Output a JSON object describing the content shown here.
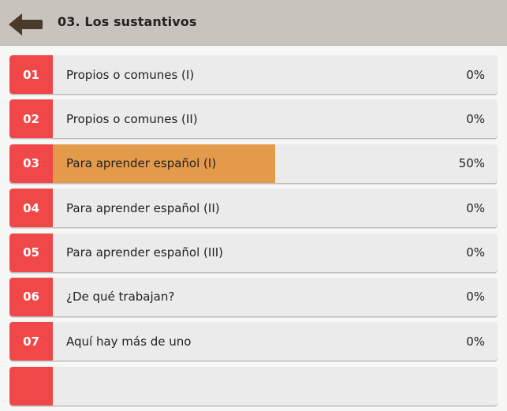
{
  "header": {
    "title": "03. Los sustantivos",
    "back_icon": "back-arrow-icon",
    "background": "#c8c3bd"
  },
  "colors": {
    "number_badge": "#f04848",
    "progress_fill": "#e39a4a",
    "row_background": "#ebebeb"
  },
  "lessons": [
    {
      "number": "01",
      "title": "Propios o comunes (I)",
      "progress": "0%",
      "progress_value": 0
    },
    {
      "number": "02",
      "title": "Propios o comunes (II)",
      "progress": "0%",
      "progress_value": 0
    },
    {
      "number": "03",
      "title": "Para aprender español (I)",
      "progress": "50%",
      "progress_value": 0.5
    },
    {
      "number": "04",
      "title": "Para aprender español (II)",
      "progress": "0%",
      "progress_value": 0
    },
    {
      "number": "05",
      "title": "Para aprender español (III)",
      "progress": "0%",
      "progress_value": 0
    },
    {
      "number": "06",
      "title": "¿De qué trabajan?",
      "progress": "0%",
      "progress_value": 0
    },
    {
      "number": "07",
      "title": "Aquí hay más de uno",
      "progress": "0%",
      "progress_value": 0
    },
    {
      "number": "",
      "title": "",
      "progress": "",
      "progress_value": 0
    }
  ]
}
